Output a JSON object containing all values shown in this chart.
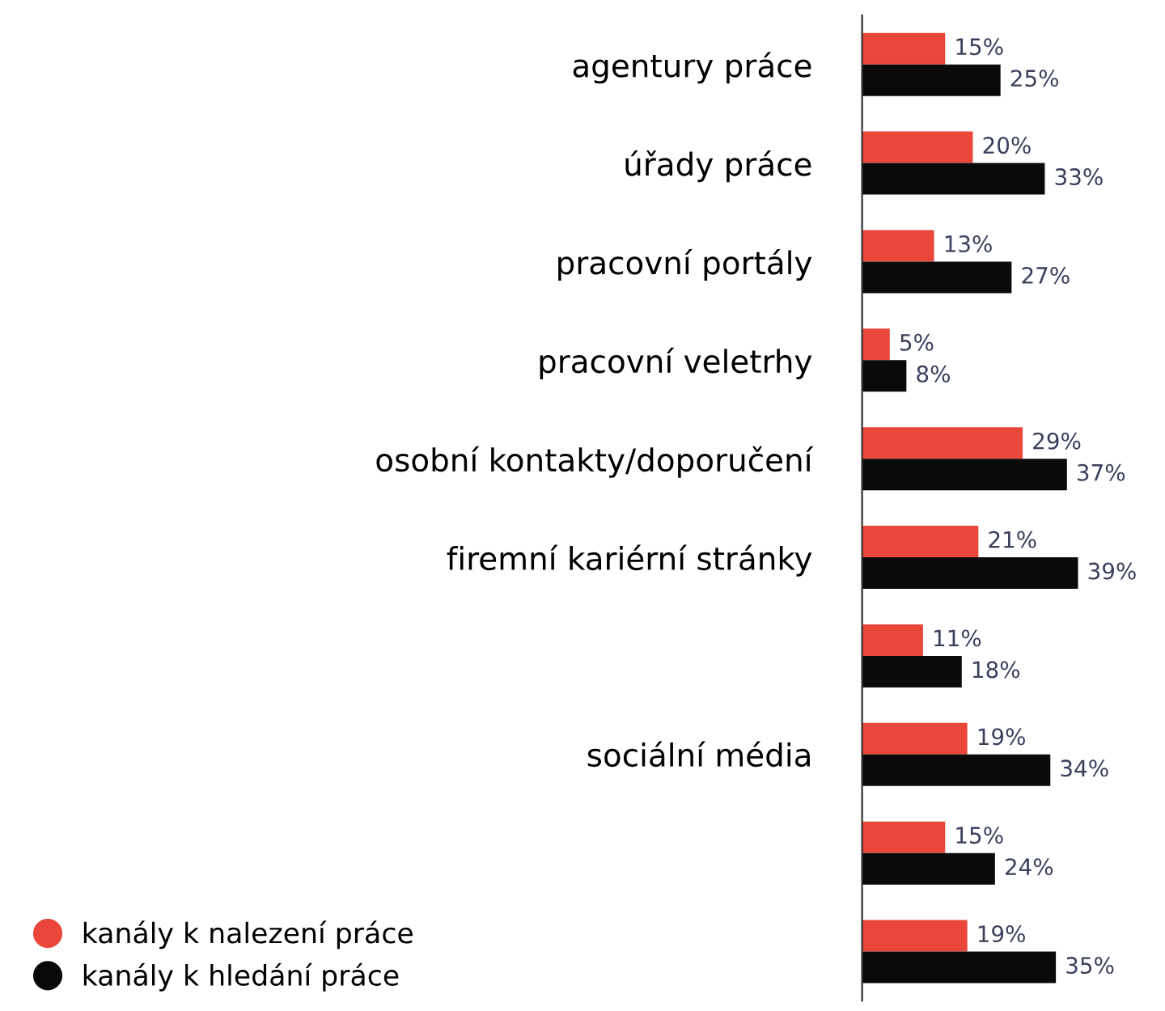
{
  "chart_data": {
    "type": "bar",
    "orientation": "horizontal",
    "categories": [
      "agentury práce",
      "úřady práce",
      "pracovní portály",
      "pracovní veletrhy",
      "osobní kontakty/doporučení",
      "firemní kariérní stránky",
      null,
      "sociální média",
      null,
      null
    ],
    "series": [
      {
        "name": "kanály k nalezení práce",
        "color": "#e8473a",
        "values": [
          15,
          20,
          13,
          5,
          29,
          21,
          11,
          19,
          15,
          19
        ],
        "value_labels": [
          "15%",
          "20%",
          "13%",
          "5%",
          "29%",
          "21%",
          "11%",
          "19%",
          "15%",
          "19%"
        ]
      },
      {
        "name": "kanály k hledání práce",
        "color": "#0a0a0a",
        "values": [
          25,
          33,
          27,
          8,
          37,
          39,
          18,
          34,
          24,
          35
        ],
        "value_labels": [
          "25%",
          "33%",
          "27%",
          "8%",
          "37%",
          "39%",
          "18%",
          "34%",
          "24%",
          "35%"
        ]
      }
    ],
    "tick_labels": "y",
    "legend": "bottom left",
    "grid": false
  }
}
